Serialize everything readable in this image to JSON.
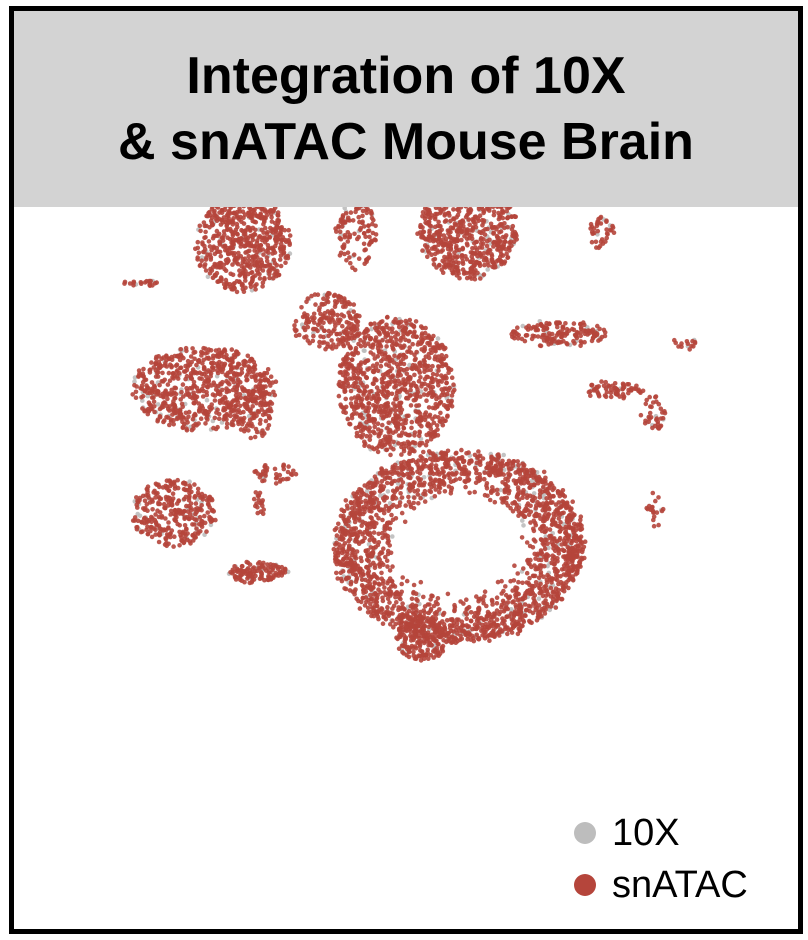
{
  "title": {
    "line1": "Integration of 10X",
    "line2": "& snATAC Mouse Brain"
  },
  "colors": {
    "frame_border": "#000000",
    "title_background": "#d3d3d3",
    "series_10x": "#bdbdbd",
    "series_snatac": "#b5453b"
  },
  "chart_data": {
    "type": "scatter",
    "title": "Integration of 10X & snATAC Mouse Brain",
    "xlabel": "",
    "ylabel": "",
    "axes_visible": false,
    "grid": false,
    "legend_placement": "bottom-right",
    "series": [
      {
        "name": "10X",
        "color": "#bdbdbd",
        "draw_order": 0
      },
      {
        "name": "snATAC",
        "color": "#b5453b",
        "draw_order": 1
      }
    ],
    "clusters": [
      {
        "cx": 229,
        "cy": 233,
        "rx": 48,
        "ry": 48,
        "shape": "ellipse",
        "n": 600
      },
      {
        "cx": 454,
        "cy": 220,
        "rx": 50,
        "ry": 48,
        "shape": "ellipse",
        "n": 620
      },
      {
        "cx": 342,
        "cy": 222,
        "rx": 20,
        "ry": 38,
        "shape": "ellipse",
        "n": 120
      },
      {
        "cx": 376,
        "cy": 160,
        "rx": 5,
        "ry": 6,
        "shape": "ellipse",
        "n": 12
      },
      {
        "cx": 588,
        "cy": 222,
        "rx": 12,
        "ry": 16,
        "shape": "ellipse",
        "n": 40
      },
      {
        "cx": 129,
        "cy": 272,
        "rx": 20,
        "ry": 3,
        "shape": "ellipse",
        "n": 20
      },
      {
        "cx": 313,
        "cy": 310,
        "rx": 35,
        "ry": 28,
        "shape": "ellipse",
        "n": 200
      },
      {
        "cx": 190,
        "cy": 378,
        "rx": 72,
        "ry": 42,
        "shape": "ellipse",
        "n": 700
      },
      {
        "cx": 240,
        "cy": 400,
        "rx": 18,
        "ry": 28,
        "shape": "ellipse",
        "n": 90
      },
      {
        "cx": 382,
        "cy": 375,
        "rx": 58,
        "ry": 70,
        "shape": "ellipse",
        "n": 950
      },
      {
        "cx": 545,
        "cy": 323,
        "rx": 48,
        "ry": 13,
        "shape": "ellipse",
        "n": 160
      },
      {
        "cx": 672,
        "cy": 333,
        "rx": 16,
        "ry": 4,
        "shape": "ellipse",
        "n": 15
      },
      {
        "cx": 600,
        "cy": 378,
        "rx": 30,
        "ry": 9,
        "shape": "ellipse",
        "n": 70
      },
      {
        "cx": 640,
        "cy": 402,
        "rx": 12,
        "ry": 18,
        "shape": "ellipse",
        "n": 40
      },
      {
        "cx": 160,
        "cy": 502,
        "rx": 42,
        "ry": 33,
        "shape": "ellipse",
        "n": 320
      },
      {
        "cx": 262,
        "cy": 462,
        "rx": 22,
        "ry": 10,
        "shape": "ellipse",
        "n": 40
      },
      {
        "cx": 245,
        "cy": 492,
        "rx": 5,
        "ry": 15,
        "shape": "ellipse",
        "n": 18
      },
      {
        "cx": 244,
        "cy": 562,
        "rx": 30,
        "ry": 11,
        "shape": "ellipse",
        "n": 120
      },
      {
        "cx": 408,
        "cy": 628,
        "rx": 26,
        "ry": 22,
        "shape": "ellipse",
        "n": 180
      },
      {
        "cx": 641,
        "cy": 500,
        "rx": 8,
        "ry": 18,
        "shape": "ellipse",
        "n": 20
      },
      {
        "cx": 445,
        "cy": 535,
        "rx": 125,
        "ry": 95,
        "shape": "ring",
        "inner": 0.5,
        "n": 2200
      }
    ]
  },
  "legend": {
    "items": [
      {
        "label": "10X",
        "color": "#bdbdbd"
      },
      {
        "label": "snATAC",
        "color": "#b5453b"
      }
    ]
  }
}
